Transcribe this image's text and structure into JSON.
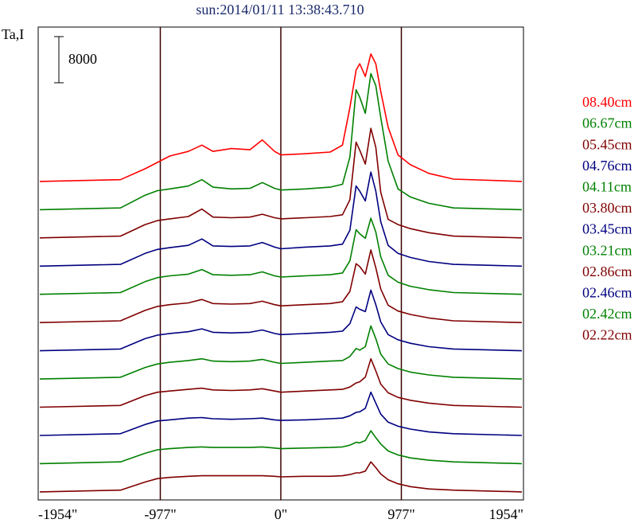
{
  "chart_data": {
    "type": "line",
    "title": "sun:2014/01/11 13:38:43.710",
    "y_label": "Ta,I",
    "scale_bar": 8000,
    "xlim": [
      -1954,
      1954
    ],
    "xticks": [
      {
        "value": -1954,
        "label": "-1954\""
      },
      {
        "value": -977,
        "label": "-977\""
      },
      {
        "value": 0,
        "label": "0\""
      },
      {
        "value": 977,
        "label": "977\""
      },
      {
        "value": 1954,
        "label": "1954\""
      }
    ],
    "ylim": [
      -1400,
      80600
    ],
    "x": [
      -1954,
      -1300,
      -1100,
      -1000,
      -900,
      -750,
      -640,
      -550,
      -400,
      -250,
      -150,
      -50,
      0,
      200,
      400,
      500,
      560,
      610,
      640,
      685,
      730,
      770,
      810,
      870,
      950,
      1050,
      1200,
      1400,
      1954
    ],
    "series": [
      {
        "name": "08.40cm",
        "color": "#ff0000",
        "values": [
          0,
          300,
          2200,
          3300,
          4400,
          5200,
          6300,
          5200,
          5700,
          5500,
          7200,
          5200,
          4600,
          4800,
          5100,
          6300,
          12800,
          19300,
          20400,
          18200,
          22100,
          20400,
          15600,
          9400,
          4600,
          2900,
          1400,
          400,
          0
        ]
      },
      {
        "name": "06.67cm",
        "color": "#008000",
        "values": [
          0,
          300,
          2500,
          3300,
          3600,
          4100,
          5200,
          3900,
          3600,
          3700,
          4700,
          3700,
          3400,
          3600,
          3900,
          4400,
          9100,
          20800,
          19500,
          16700,
          23600,
          21500,
          16000,
          8400,
          3600,
          2200,
          1100,
          300,
          0
        ]
      },
      {
        "name": "05.45cm",
        "color": "#800000",
        "values": [
          0,
          300,
          2300,
          3000,
          3300,
          3700,
          5000,
          3600,
          3500,
          3600,
          4100,
          3500,
          3300,
          3500,
          3700,
          4000,
          6600,
          16600,
          15200,
          12800,
          19000,
          15700,
          7900,
          3200,
          2300,
          1600,
          900,
          300,
          0
        ]
      },
      {
        "name": "04.76cm",
        "color": "#000080",
        "values": [
          0,
          300,
          2200,
          2900,
          3200,
          3600,
          4700,
          3500,
          3400,
          3500,
          4100,
          3300,
          3000,
          3300,
          3500,
          3800,
          6200,
          13900,
          13000,
          11300,
          16300,
          13000,
          7700,
          3600,
          2200,
          1500,
          800,
          300,
          0
        ]
      },
      {
        "name": "04.11cm",
        "color": "#008000",
        "values": [
          0,
          300,
          2200,
          2900,
          3200,
          3500,
          4300,
          3400,
          3300,
          3400,
          3900,
          3200,
          3000,
          3200,
          3400,
          3700,
          5800,
          11200,
          10500,
          9700,
          13200,
          10800,
          6500,
          3300,
          2100,
          1400,
          800,
          300,
          0
        ]
      },
      {
        "name": "03.80cm",
        "color": "#800000",
        "values": [
          0,
          300,
          2100,
          2800,
          3100,
          3400,
          4000,
          3300,
          3200,
          3300,
          3700,
          3100,
          2900,
          3100,
          3300,
          3600,
          5400,
          10200,
          9700,
          8400,
          12600,
          9500,
          5800,
          3000,
          2000,
          1400,
          800,
          300,
          0
        ]
      },
      {
        "name": "03.45cm",
        "color": "#000080",
        "values": [
          0,
          300,
          2100,
          2700,
          3000,
          3300,
          3800,
          3200,
          3100,
          3200,
          3600,
          3000,
          2800,
          3000,
          3200,
          3400,
          4700,
          7600,
          7200,
          6800,
          10500,
          8000,
          5000,
          2800,
          1900,
          1300,
          700,
          300,
          0
        ]
      },
      {
        "name": "03.21cm",
        "color": "#008000",
        "values": [
          0,
          300,
          2000,
          2600,
          2900,
          3200,
          3500,
          3100,
          3000,
          3100,
          3400,
          2900,
          2700,
          2900,
          3100,
          3200,
          3900,
          5300,
          5000,
          5600,
          9200,
          7000,
          4300,
          2600,
          1800,
          1200,
          700,
          300,
          0
        ]
      },
      {
        "name": "02.86cm",
        "color": "#800000",
        "values": [
          0,
          300,
          2000,
          2600,
          2800,
          3100,
          3300,
          3000,
          2900,
          3000,
          3200,
          2800,
          2600,
          2800,
          3000,
          3100,
          3500,
          4200,
          4400,
          5200,
          8400,
          6300,
          4000,
          2500,
          1700,
          1200,
          700,
          300,
          0
        ]
      },
      {
        "name": "02.46cm",
        "color": "#000080",
        "values": [
          0,
          300,
          1900,
          2500,
          2700,
          3000,
          3100,
          2900,
          2800,
          2900,
          3000,
          2700,
          2600,
          2700,
          2900,
          3000,
          3400,
          4000,
          4100,
          4700,
          7500,
          5600,
          3700,
          2300,
          1600,
          1100,
          600,
          300,
          0
        ]
      },
      {
        "name": "02.42cm",
        "color": "#008000",
        "values": [
          0,
          300,
          1800,
          2400,
          2600,
          2800,
          2900,
          2800,
          2800,
          2800,
          2900,
          2700,
          2600,
          2700,
          2800,
          2900,
          3200,
          3700,
          3600,
          4000,
          5700,
          4500,
          3400,
          2200,
          1500,
          1000,
          600,
          300,
          0
        ]
      },
      {
        "name": "02.22cm",
        "color": "#800000",
        "values": [
          0,
          300,
          1700,
          2300,
          2500,
          2700,
          2800,
          2800,
          2800,
          2800,
          2800,
          2700,
          2600,
          2700,
          2700,
          2800,
          3000,
          3300,
          3300,
          3600,
          5200,
          4200,
          3100,
          2100,
          1400,
          900,
          500,
          300,
          0
        ]
      }
    ]
  }
}
